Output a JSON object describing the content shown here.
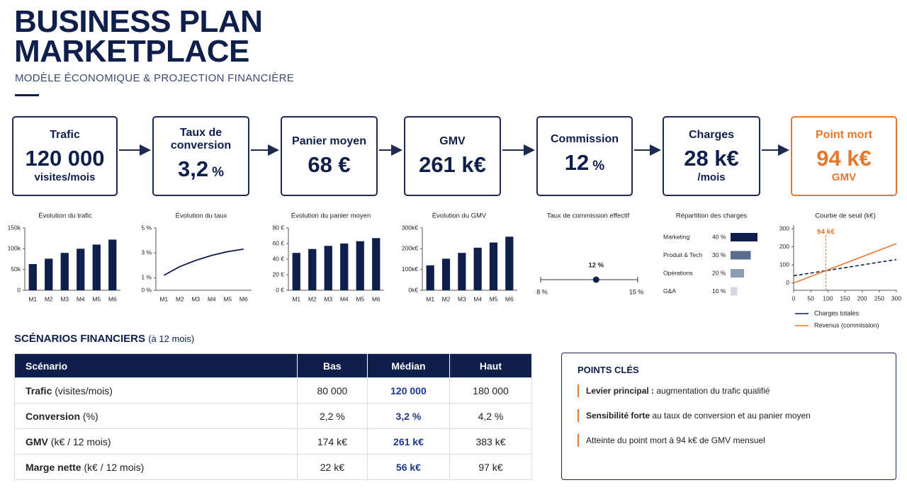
{
  "header": {
    "title_lines": [
      "BUSINESS PLAN",
      "MARKETPLACE"
    ],
    "subtitle": "MODÈLE ÉCONOMIQUE & PROJECTION FINANCIÈRE"
  },
  "kpis": [
    {
      "label": "Trafic",
      "value": "120 000",
      "unit": "visites/mois",
      "unit_position": "below"
    },
    {
      "label": "Taux de conversion",
      "value": "3,2",
      "unit": "%",
      "unit_position": "inline"
    },
    {
      "label": "Panier moyen",
      "value": "68 €"
    },
    {
      "label": "GMV",
      "value": "261 k€"
    },
    {
      "label": "Commission",
      "value": "12",
      "unit": "%",
      "unit_position": "inline"
    },
    {
      "label": "Charges",
      "value": "28 k€",
      "unit": "/mois",
      "unit_position": "below"
    },
    {
      "label": "Point mort",
      "value": "94 k€",
      "unit": "GMV",
      "unit_position": "below",
      "highlight": true
    }
  ],
  "chart_data": [
    {
      "type": "bar",
      "title": "Évolution du trafic",
      "categories": [
        "M1",
        "M2",
        "M3",
        "M4",
        "M5",
        "M6"
      ],
      "values": [
        63000,
        76000,
        90000,
        100000,
        110000,
        122000
      ],
      "color": "#0f1f4b",
      "ylim": [
        0,
        150000
      ],
      "yticks": [
        0,
        {
          "value": 50000,
          "label": "50k"
        },
        {
          "value": 100000,
          "label": "100k"
        },
        {
          "value": 150000,
          "label": "150k"
        }
      ]
    },
    {
      "type": "line",
      "title": "Évolution du taux",
      "categories": [
        "M1",
        "M2",
        "M3",
        "M4",
        "M5",
        "M6"
      ],
      "values": [
        1.2,
        1.9,
        2.4,
        2.8,
        3.1,
        3.3
      ],
      "color": "#0f1f4b",
      "ylim": [
        0,
        5
      ],
      "yticks": [
        {
          "value": 0,
          "label": "0 %"
        },
        {
          "value": 1,
          "label": "1 %"
        },
        {
          "value": 3,
          "label": "3 %"
        },
        {
          "value": 5,
          "label": "5 %"
        }
      ]
    },
    {
      "type": "bar",
      "title": "Évolution du panier moyen",
      "categories": [
        "M1",
        "M2",
        "M3",
        "M4",
        "M5",
        "M6"
      ],
      "values": [
        48,
        53,
        57,
        60,
        63,
        67
      ],
      "color": "#0f1f4b",
      "ylim": [
        0,
        80
      ],
      "yticks": [
        {
          "value": 0,
          "label": "0 €"
        },
        {
          "value": 20,
          "label": "20 €"
        },
        {
          "value": 40,
          "label": "40 €"
        },
        {
          "value": 60,
          "label": "60 €"
        },
        {
          "value": 80,
          "label": "80 €"
        }
      ]
    },
    {
      "type": "bar",
      "title": "Évolution du GMV",
      "categories": [
        "M1",
        "M2",
        "M3",
        "M4",
        "M5",
        "M6"
      ],
      "values": [
        120,
        152,
        180,
        205,
        230,
        258
      ],
      "color": "#0f1f4b",
      "ylim": [
        0,
        300
      ],
      "yticks": [
        {
          "value": 0,
          "label": "0k€"
        },
        {
          "value": 100,
          "label": "100k€"
        },
        {
          "value": 200,
          "label": "200k€"
        },
        {
          "value": 300,
          "label": "300k€"
        }
      ]
    },
    {
      "type": "range",
      "title": "Taux de commission effectif",
      "value": 12,
      "value_label": "12 %",
      "color": "#0f1f4b",
      "xlim": [
        8,
        15
      ],
      "xticks": [
        {
          "value": 8,
          "label": "8 %"
        },
        {
          "value": 15,
          "label": "15 %"
        }
      ]
    },
    {
      "type": "hbar",
      "title": "Répartition des charges",
      "categories": [
        "Marketing",
        "Produit & Tech",
        "Opérations",
        "G&A"
      ],
      "values": [
        40,
        30,
        20,
        10
      ],
      "value_labels": [
        "40 %",
        "30 %",
        "20 %",
        "10 %"
      ],
      "colors": [
        "#0f1f4b",
        "#5a6b8c",
        "#8f9bb3",
        "#d3d8e2"
      ]
    },
    {
      "type": "line",
      "title": "Courbe de seuil (k€)",
      "x": [
        0,
        300
      ],
      "series": [
        {
          "name": "Charges totales",
          "color": "#0f1f4b",
          "line_style": "dashed",
          "values": [
            40,
            130
          ]
        },
        {
          "name": "Revenus (commission)",
          "color": "#e8772e",
          "values": [
            0,
            218
          ]
        }
      ],
      "xlim": [
        0,
        300
      ],
      "xticks": [
        0,
        50,
        100,
        150,
        200,
        250,
        300
      ],
      "ylim": [
        -40,
        320
      ],
      "yticks": [
        0,
        100,
        200,
        300
      ],
      "annotation": {
        "x": 94,
        "label": "94 k€"
      },
      "legend": "bottom"
    }
  ],
  "scenarios": {
    "title": "SCÉNARIOS FINANCIERS",
    "subtitle": "(à 12 mois)",
    "columns": [
      "Scénario",
      "Bas",
      "Médian",
      "Haut"
    ],
    "rows": [
      {
        "label": "Trafic",
        "unit": "(visites/mois)",
        "cells": [
          "80 000",
          "120 000",
          "180 000"
        ]
      },
      {
        "label": "Conversion",
        "unit": "(%)",
        "cells": [
          "2,2 %",
          "3,2 %",
          "4,2 %"
        ]
      },
      {
        "label": "GMV",
        "unit": "(k€ / 12 mois)",
        "cells": [
          "174 k€",
          "261 k€",
          "383 k€"
        ]
      },
      {
        "label": "Marge nette",
        "unit": "(k€ / 12 mois)",
        "cells": [
          "22 k€",
          "56 k€",
          "97 k€"
        ]
      }
    ],
    "highlight_column": 2
  },
  "key_points": {
    "title": "POINTS CLÉS",
    "items": [
      {
        "bold": "Levier principal :",
        "text": "augmentation du trafic qualifié"
      },
      {
        "bold": "Sensibilité forte",
        "text": "au taux de conversion et au panier moyen"
      },
      {
        "text": "Atteinte du point mort à 94 k€ de GMV mensuel"
      }
    ]
  }
}
